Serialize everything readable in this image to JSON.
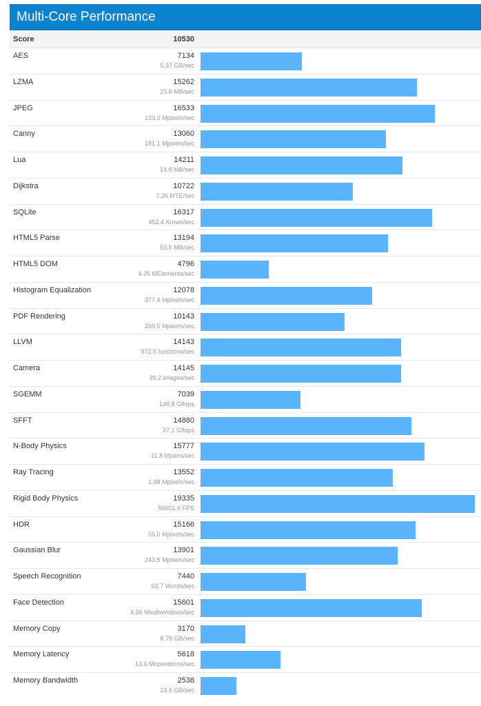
{
  "header": {
    "title": "Multi-Core Performance",
    "score_label": "Score",
    "score_value": "10530"
  },
  "colors": {
    "header_bg": "#0c83cf",
    "bar": "#5ab4fb"
  },
  "chart_data": {
    "type": "bar",
    "orientation": "horizontal",
    "title": "Multi-Core Performance",
    "xlim": [
      0,
      19335
    ],
    "categories": [
      "AES",
      "LZMA",
      "JPEG",
      "Canny",
      "Lua",
      "Dijkstra",
      "SQLite",
      "HTML5 Parse",
      "HTML5 DOM",
      "Histogram Equalization",
      "PDF Rendering",
      "LLVM",
      "Camera",
      "SGEMM",
      "SFFT",
      "N-Body Physics",
      "Ray Tracing",
      "Rigid Body Physics",
      "HDR",
      "Gaussian Blur",
      "Speech Recognition",
      "Face Detection",
      "Memory Copy",
      "Memory Latency",
      "Memory Bandwidth"
    ],
    "values": [
      7134,
      15262,
      16533,
      13060,
      14211,
      10722,
      16317,
      13194,
      4796,
      12078,
      10143,
      14143,
      14145,
      7039,
      14880,
      15777,
      13552,
      19335,
      15166,
      13901,
      7440,
      15601,
      3170,
      5618,
      2538
    ],
    "rates": [
      "5.37 GB/sec",
      "23.8 MB/sec",
      "133.0 Mpixels/sec",
      "181.1 Mpixels/sec",
      "14.6 MB/sec",
      "7.26 MTE/sec",
      "452.4 Krows/sec",
      "59.9 MB/sec",
      "4.35 MElements/sec",
      "377.4 Mpixels/sec",
      "269.5 Mpixels/sec",
      "972.5 functions/sec",
      "39.2 images/sec",
      "148.8 Gflops",
      "37.1 Gflops",
      "11.8 Mpairs/sec",
      "1.98 Mpixels/sec",
      "56601.6 FPS",
      "55.0 Mpixels/sec",
      "243.5 Mpixels/sec",
      "63.7 Words/sec",
      "4.56 Msubwindows/sec",
      "8.79 GB/sec",
      "13.0 Moperations/sec",
      "13.6 GB/sec"
    ]
  }
}
